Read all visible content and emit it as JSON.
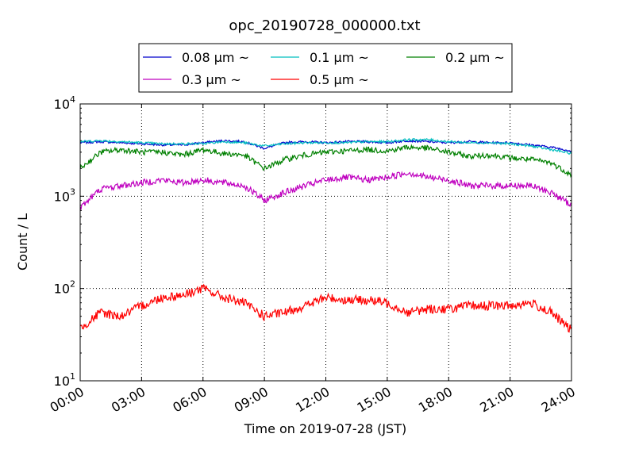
{
  "chart_data": {
    "type": "line",
    "title": "opc_20190728_000000.txt",
    "xlabel": "Time on 2019-07-28 (JST)",
    "ylabel": "Count / L",
    "x_ticks": [
      "00:00",
      "03:00",
      "06:00",
      "09:00",
      "12:00",
      "15:00",
      "18:00",
      "21:00",
      "24:00"
    ],
    "y_ticks": [
      {
        "value": 10,
        "base": "10",
        "exp": "1"
      },
      {
        "value": 100,
        "base": "10",
        "exp": "2"
      },
      {
        "value": 1000,
        "base": "10",
        "exp": "3"
      },
      {
        "value": 10000,
        "base": "10",
        "exp": "4"
      }
    ],
    "xlim_hours": [
      0,
      24
    ],
    "ylim": [
      10,
      10000
    ],
    "y_scale": "log",
    "grid": true,
    "legend_position": "top-center",
    "series": [
      {
        "name": "0.08 μm ~",
        "color": "#0000cc",
        "x_hours": [
          0,
          1,
          2,
          3,
          4,
          5,
          6,
          7,
          8,
          9,
          10,
          11,
          12,
          13,
          14,
          15,
          16,
          17,
          18,
          19,
          20,
          21,
          22,
          23,
          24
        ],
        "values": [
          3800,
          3900,
          3800,
          3700,
          3600,
          3600,
          3800,
          4000,
          3900,
          3300,
          3800,
          3900,
          3800,
          3900,
          3900,
          3800,
          4000,
          3900,
          3800,
          3900,
          3800,
          3800,
          3600,
          3400,
          3100
        ]
      },
      {
        "name": "0.1 μm ~",
        "color": "#00bfbf",
        "x_hours": [
          0,
          1,
          2,
          3,
          4,
          5,
          6,
          7,
          8,
          9,
          10,
          11,
          12,
          13,
          14,
          15,
          16,
          17,
          18,
          19,
          20,
          21,
          22,
          23,
          24
        ],
        "values": [
          3900,
          4000,
          3900,
          3800,
          3700,
          3700,
          3700,
          3900,
          3800,
          3500,
          3700,
          3800,
          3800,
          3800,
          3900,
          3900,
          4100,
          4100,
          3900,
          3800,
          3800,
          3700,
          3500,
          3200,
          2900
        ]
      },
      {
        "name": "0.2 μm ~",
        "color": "#008000",
        "x_hours": [
          0,
          1,
          2,
          3,
          4,
          5,
          6,
          7,
          8,
          9,
          10,
          11,
          12,
          13,
          14,
          15,
          16,
          17,
          18,
          19,
          20,
          21,
          22,
          23,
          24
        ],
        "values": [
          2000,
          3000,
          3200,
          3000,
          3000,
          2800,
          3200,
          2900,
          2800,
          2000,
          2500,
          2800,
          3000,
          3100,
          3200,
          3100,
          3400,
          3300,
          3000,
          2700,
          2800,
          2600,
          2500,
          2300,
          1700
        ]
      },
      {
        "name": "0.3 μm ~",
        "color": "#bf00bf",
        "x_hours": [
          0,
          1,
          2,
          3,
          4,
          5,
          6,
          7,
          8,
          9,
          10,
          11,
          12,
          13,
          14,
          15,
          16,
          17,
          18,
          19,
          20,
          21,
          22,
          23,
          24
        ],
        "values": [
          750,
          1200,
          1300,
          1400,
          1500,
          1400,
          1500,
          1400,
          1300,
          900,
          1100,
          1300,
          1500,
          1600,
          1500,
          1600,
          1800,
          1600,
          1500,
          1300,
          1300,
          1300,
          1300,
          1100,
          800
        ]
      },
      {
        "name": "0.5 μm ~",
        "color": "#ff0000",
        "x_hours": [
          0,
          1,
          2,
          3,
          4,
          5,
          6,
          7,
          8,
          9,
          10,
          11,
          12,
          13,
          14,
          15,
          16,
          17,
          18,
          19,
          20,
          21,
          22,
          23,
          24
        ],
        "values": [
          37,
          55,
          50,
          65,
          80,
          85,
          100,
          80,
          70,
          50,
          55,
          65,
          80,
          75,
          75,
          70,
          55,
          60,
          60,
          65,
          65,
          65,
          70,
          55,
          35
        ]
      }
    ]
  }
}
